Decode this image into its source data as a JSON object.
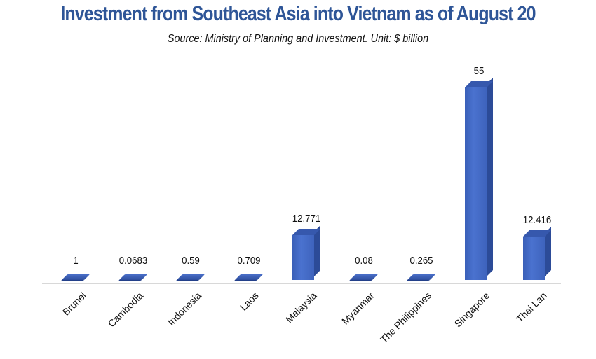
{
  "chart_data": {
    "type": "bar",
    "title": "Investment from Southeast Asia into Vietnam as of August 20",
    "subtitle": "Source: Ministry of Planning and Investment. Unit: $ billion",
    "xlabel": "",
    "ylabel": "$ billion",
    "categories": [
      "Brunei",
      "Cambodia",
      "Indonesia",
      "Laos",
      "Malaysia",
      "Myanmar",
      "The Philippines",
      "Singapore",
      "Thai Lan"
    ],
    "values": [
      1,
      0.0683,
      0.59,
      0.709,
      12.771,
      0.08,
      0.265,
      55,
      12.416
    ],
    "value_labels": [
      "1",
      "0.0683",
      "0.59",
      "0.709",
      "12.771",
      "0.08",
      "0.265",
      "55",
      "12.416"
    ],
    "ylim": [
      0,
      55
    ],
    "grid": false,
    "legend": null,
    "style": "3d-column",
    "bar_color": "#3f63bf"
  },
  "header": {
    "title": "Investment from Southeast Asia into Vietnam as of August 20",
    "subtitle": "Source: Ministry of Planning and Investment. Unit: $ billion"
  }
}
